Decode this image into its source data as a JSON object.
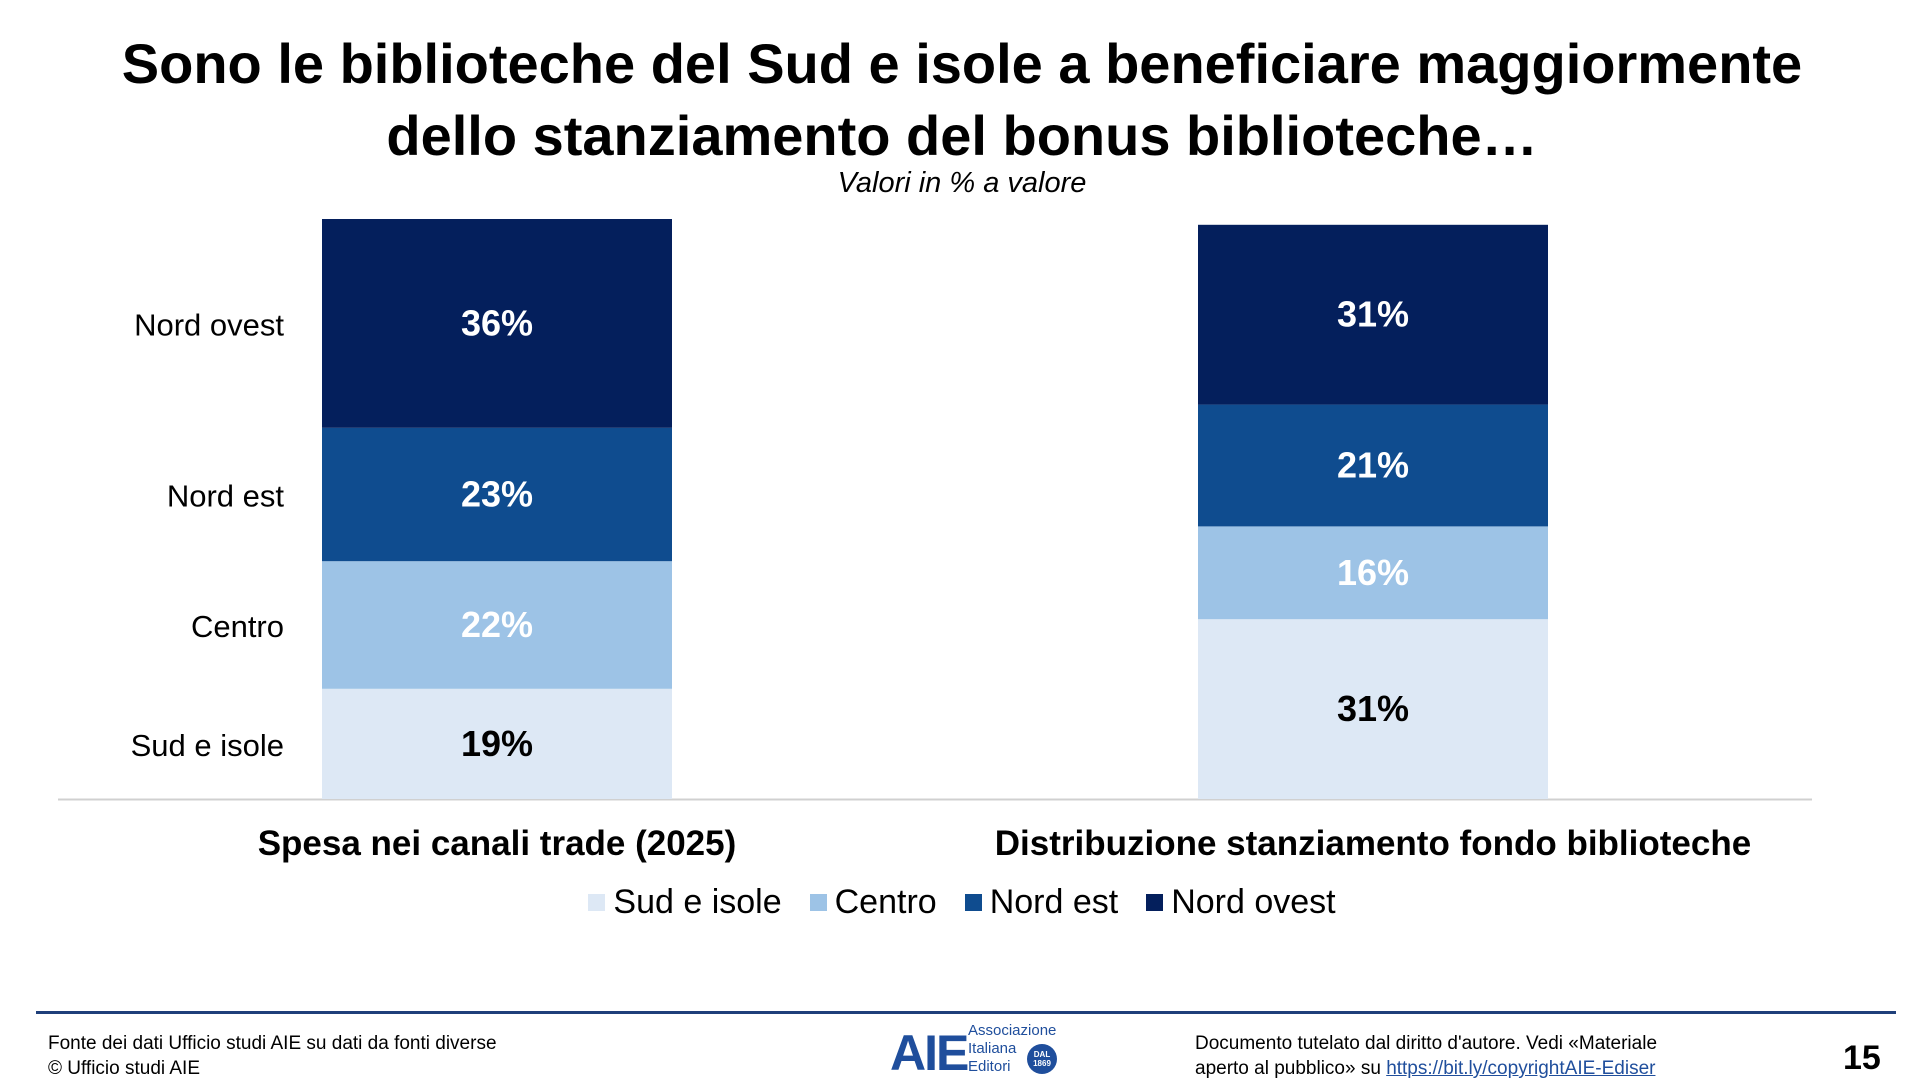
{
  "title_line1": "Sono le biblioteche del Sud e isole a beneficiare maggiormente",
  "title_line2": "dello stanziamento del bonus biblioteche…",
  "subtitle": "Valori in % a valore",
  "chart_data": {
    "type": "bar",
    "stacked": true,
    "normalized": true,
    "title": "Sono le biblioteche del Sud e isole a beneficiare maggiormente dello stanziamento del bonus biblioteche…",
    "subtitle": "Valori in % a valore",
    "categories": [
      "Spesa nei canali trade (2025)",
      "Distribuzione stanziamento fondo biblioteche"
    ],
    "series": [
      {
        "name": "Sud e isole",
        "values": [
          19,
          31
        ],
        "labels": [
          "19%",
          "31%"
        ],
        "color": "#dde8f5",
        "label_color": "#000000"
      },
      {
        "name": "Centro",
        "values": [
          22,
          16
        ],
        "labels": [
          "22%",
          "16%"
        ],
        "color": "#9dc3e6",
        "label_color": "#ffffff"
      },
      {
        "name": "Nord est",
        "values": [
          23,
          21
        ],
        "labels": [
          "23%",
          "21%"
        ],
        "color": "#0f4c8f",
        "label_color": "#ffffff"
      },
      {
        "name": "Nord ovest",
        "values": [
          36,
          31
        ],
        "labels": [
          "36%",
          "31%"
        ],
        "color": "#041f5c",
        "label_color": "#ffffff"
      }
    ],
    "ylim": [
      0,
      100
    ],
    "grid": false,
    "legend_position": "bottom",
    "side_labels": [
      "Sud e isole",
      "Centro",
      "Nord est",
      "Nord ovest"
    ]
  },
  "footer": {
    "source_line1": "Fonte dei dati Ufficio studi AIE su dati da fonti diverse",
    "source_line2": "© Ufficio studi AIE",
    "copyright_line1": "Documento tutelato dal diritto d'autore. Vedi «Materiale",
    "copyright_line2_prefix": "aperto al pubblico» su ",
    "copyright_link": "https://bit.ly/copyrightAIE-Ediser",
    "page_number": "15"
  },
  "logo": {
    "mark": "AIE",
    "line1": "Associazione",
    "line2": "Italiana",
    "line3": "Editori",
    "badge_line1": "DAL",
    "badge_line2": "1869"
  },
  "colors": {
    "accent": "#1f3f7a",
    "link": "#1f4e9c"
  }
}
